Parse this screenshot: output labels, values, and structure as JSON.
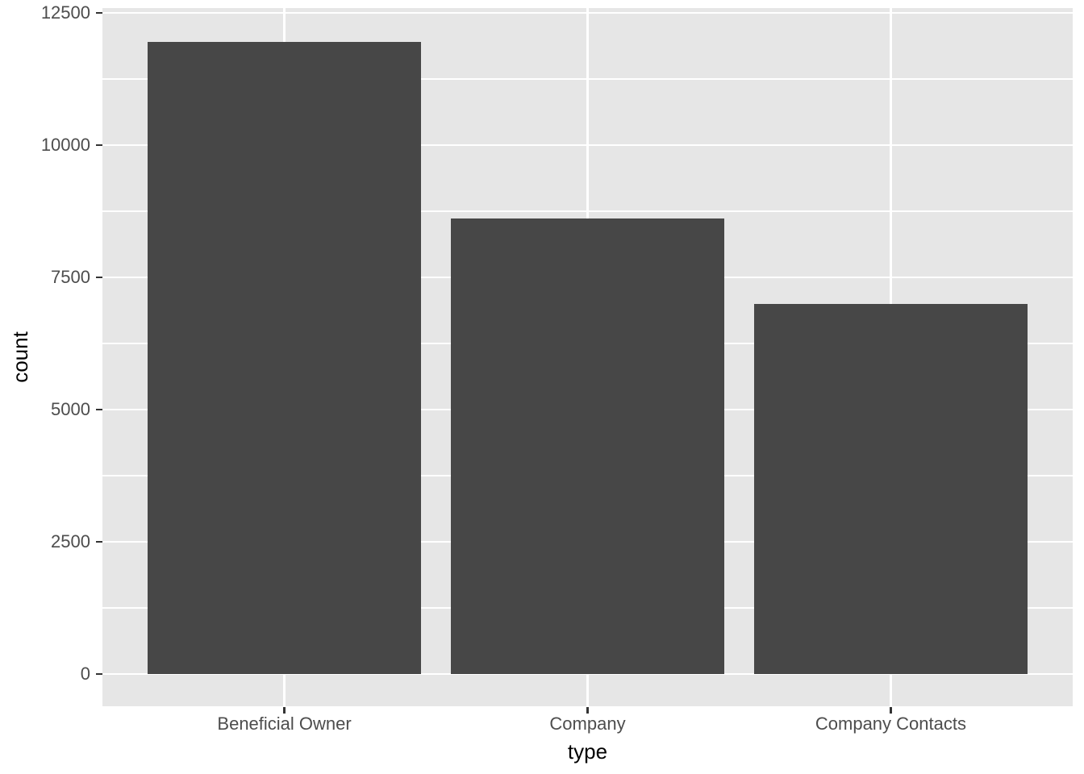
{
  "chart_data": {
    "type": "bar",
    "title": "",
    "xlabel": "type",
    "ylabel": "count",
    "categories": [
      "Beneficial Owner",
      "Company",
      "Company Contacts"
    ],
    "values": [
      11950,
      8615,
      7000
    ],
    "ylim": [
      0,
      12500
    ],
    "yticks": [
      0,
      2500,
      5000,
      7500,
      10000,
      12500
    ],
    "ytick_labels": [
      "0",
      "2500",
      "5000",
      "7500",
      "10000",
      "12500"
    ],
    "grid": "horizontal major+minor white lines, vertical major white lines at category centers",
    "legend_position": "none",
    "style": "ggplot2-grey-theme",
    "colors": {
      "bar_fill": "#474747",
      "panel_background": "#e6e6e6",
      "gridline": "#ffffff",
      "tick_label": "#4d4d4d",
      "axis_title": "#000000",
      "tick_mark": "#333333",
      "figure_background": "#ffffff"
    }
  }
}
